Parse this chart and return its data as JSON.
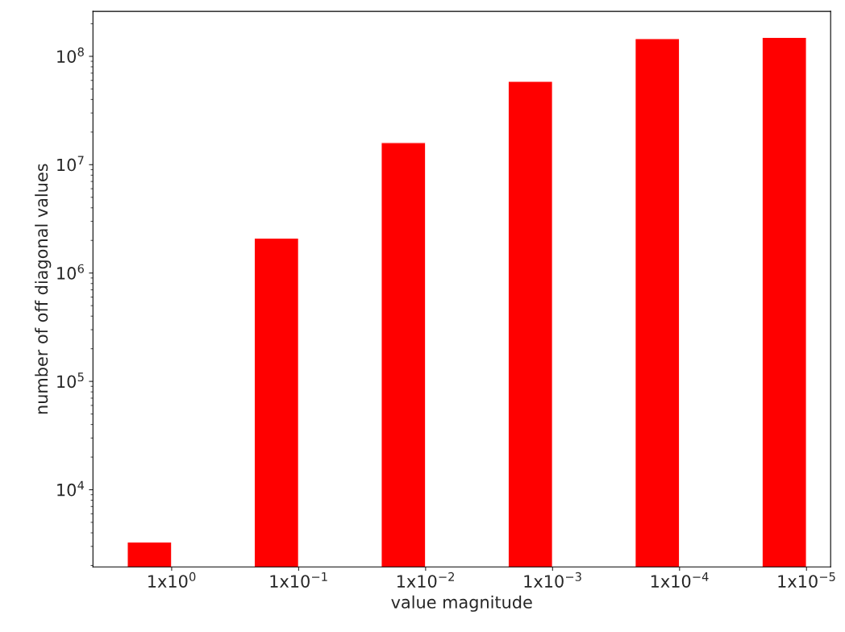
{
  "chart_data": {
    "type": "bar",
    "xlabel": "value magnitude",
    "ylabel": "number of off diagonal values",
    "categories": [
      "1x10$^{0}$",
      "1x10$^{−1}$",
      "1x10$^{−2}$",
      "1x10$^{−3}$",
      "1x10$^{−4}$",
      "1x10$^{−5}$"
    ],
    "values": [
      3300,
      2100000,
      16000000,
      59000000,
      146000000,
      150000000
    ],
    "color": "#ff0000",
    "log": true,
    "ylim": [
      1940,
      260000000
    ],
    "yticks": [
      {
        "value": 10000,
        "label": "10$^{4}$"
      },
      {
        "value": 100000,
        "label": "10$^{5}$"
      },
      {
        "value": 1000000,
        "label": "10$^{6}$"
      },
      {
        "value": 10000000,
        "label": "10$^{7}$"
      },
      {
        "value": 100000000,
        "label": "10$^{8}$"
      }
    ],
    "grid": false,
    "legend": false
  }
}
